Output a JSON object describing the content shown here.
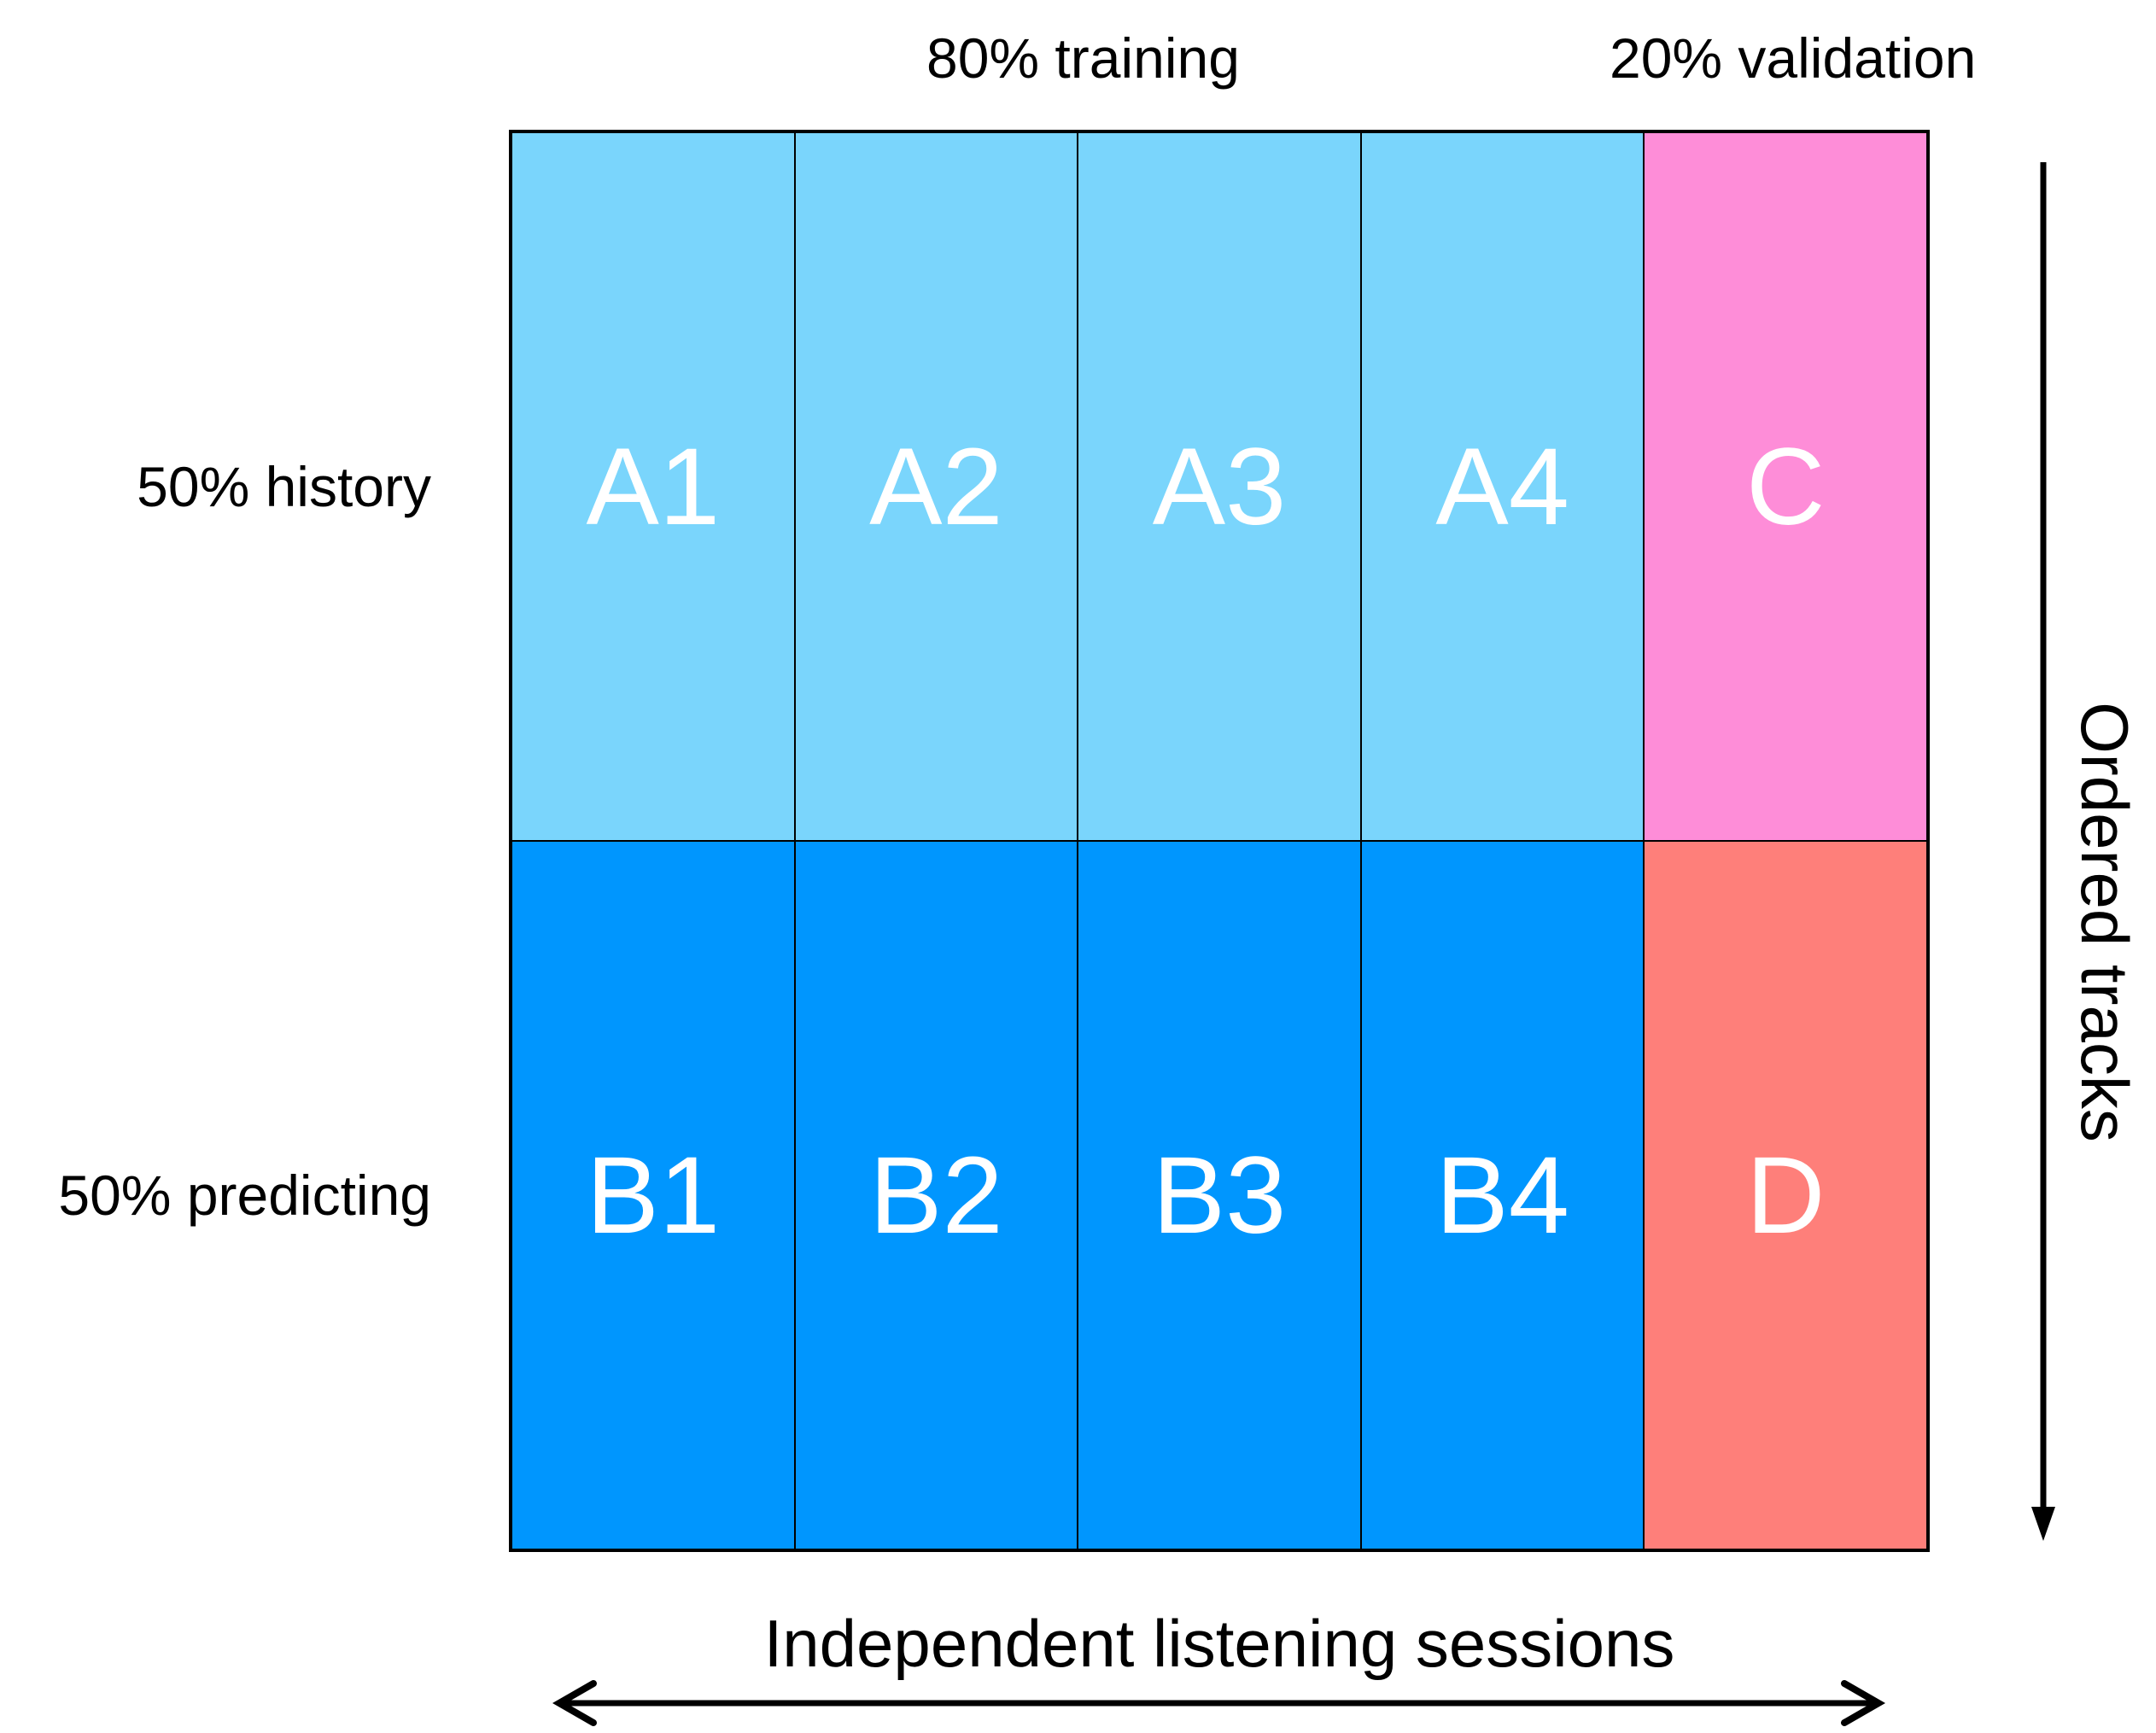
{
  "labels": {
    "top_training": "80% training",
    "top_validation": "20% validation",
    "row_history": "50% history",
    "row_predicting": "50% predicting",
    "x_axis": "Independent listening sessions",
    "y_axis": "Ordered tracks"
  },
  "colors": {
    "training_history": "#7AD5FC",
    "training_predicting": "#0096FE",
    "validation_history": "#FE8DD8",
    "validation_predicting": "#FE7F7A"
  },
  "cells": [
    [
      "A1",
      "A2",
      "A3",
      "A4",
      "C"
    ],
    [
      "B1",
      "B2",
      "B3",
      "B4",
      "D"
    ]
  ]
}
